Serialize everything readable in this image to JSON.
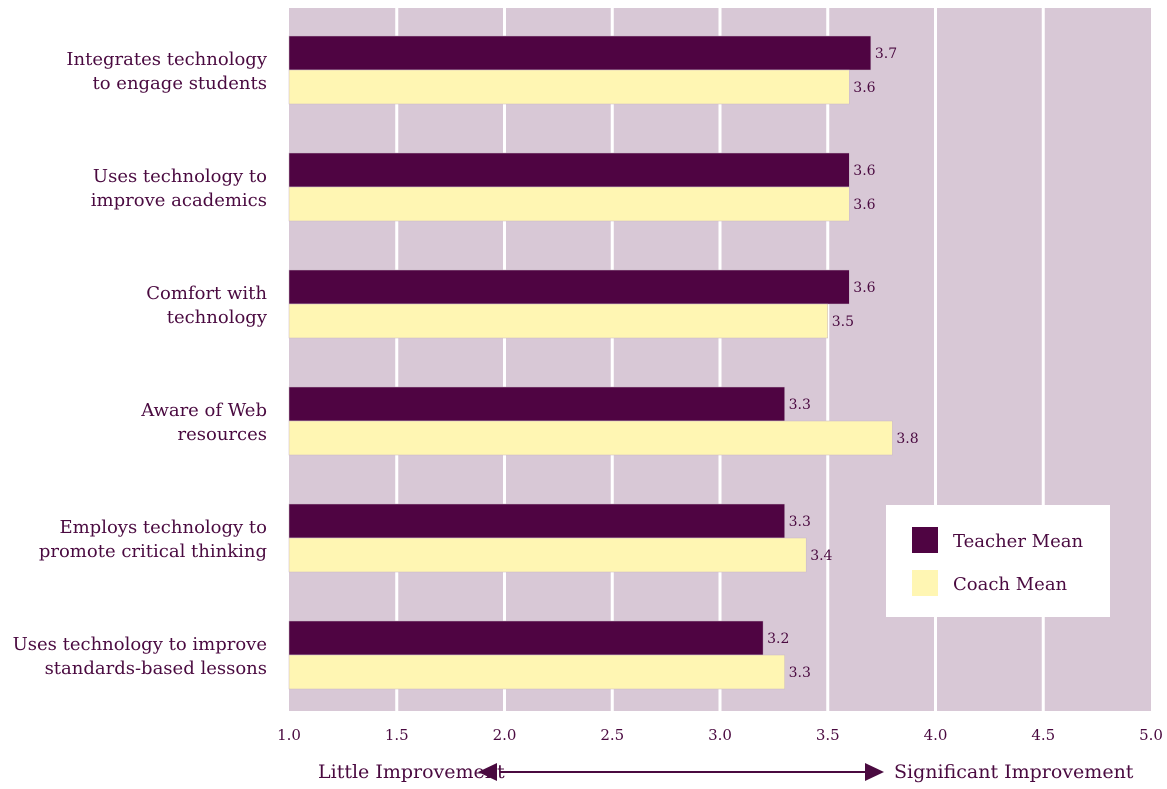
{
  "chart_data": {
    "type": "bar",
    "orientation": "horizontal",
    "categories": [
      [
        "Integrates technology",
        "to engage students"
      ],
      [
        "Uses technology to",
        "improve academics"
      ],
      [
        "Comfort with",
        "technology"
      ],
      [
        "Aware of Web",
        "resources"
      ],
      [
        "Employs technology to",
        "promote critical thinking"
      ],
      [
        "Uses technology to improve",
        "standards-based lessons"
      ]
    ],
    "series": [
      {
        "name": "Teacher Mean",
        "color": "#4f0442",
        "values": [
          3.7,
          3.6,
          3.6,
          3.3,
          3.3,
          3.2
        ]
      },
      {
        "name": "Coach Mean",
        "color": "#fff6b3",
        "values": [
          3.6,
          3.6,
          3.5,
          3.8,
          3.4,
          3.3
        ]
      }
    ],
    "value_labels": [
      [
        "3.7",
        "3.6",
        "3.6",
        "3.3",
        "3.3",
        "3.2"
      ],
      [
        "3.6",
        "3.6",
        "3.5",
        "3.8",
        "3.4",
        "3.3"
      ]
    ],
    "xlim": [
      1.0,
      5.0
    ],
    "xticks": [
      "1.0",
      "1.5",
      "2.0",
      "2.5",
      "3.0",
      "3.5",
      "4.0",
      "4.5",
      "5.0"
    ],
    "xtick_values": [
      1.0,
      1.5,
      2.0,
      2.5,
      3.0,
      3.5,
      4.0,
      4.5,
      5.0
    ],
    "scale_left_label": "Little Improvement",
    "scale_right_label": "Significant Improvement",
    "legend_position": "right",
    "grid": true,
    "plot_background": "#d8c8d6",
    "grid_color": "#ffffff",
    "text_color": "#4a0a40",
    "bar_edge_color": "#c9b7c6"
  }
}
